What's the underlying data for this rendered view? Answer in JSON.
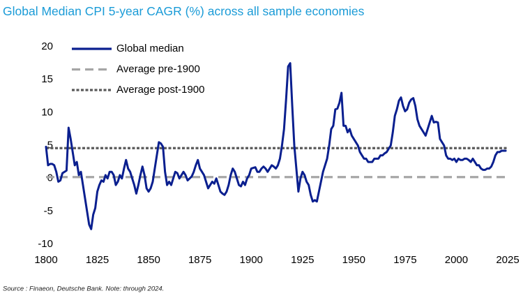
{
  "chart_data": {
    "type": "line",
    "title": "Global Median CPI 5-year CAGR (%) across all sample economies",
    "source": "Source : Finaeon, Deutsche Bank. Note: through 2024.",
    "xlim": [
      1800,
      2025
    ],
    "xticks": [
      1800,
      1825,
      1850,
      1875,
      1900,
      1925,
      1950,
      1975,
      2000,
      2025
    ],
    "ylim": [
      -10,
      20
    ],
    "yticks": [
      -10,
      -5,
      0,
      5,
      10,
      15,
      20
    ],
    "grid": false,
    "legend": "top-left",
    "series": [
      {
        "name": "Global median",
        "color": "#0a1f8f",
        "x": [
          1800,
          1801,
          1802,
          1803,
          1804,
          1805,
          1806,
          1807,
          1808,
          1809,
          1810,
          1811,
          1812,
          1813,
          1814,
          1815,
          1816,
          1817,
          1818,
          1819,
          1820,
          1821,
          1822,
          1823,
          1824,
          1825,
          1826,
          1827,
          1828,
          1829,
          1830,
          1831,
          1832,
          1833,
          1834,
          1835,
          1836,
          1837,
          1838,
          1839,
          1840,
          1841,
          1842,
          1843,
          1844,
          1845,
          1846,
          1847,
          1848,
          1849,
          1850,
          1851,
          1852,
          1853,
          1854,
          1855,
          1856,
          1857,
          1858,
          1859,
          1860,
          1861,
          1862,
          1863,
          1864,
          1865,
          1866,
          1867,
          1868,
          1869,
          1870,
          1871,
          1872,
          1873,
          1874,
          1875,
          1876,
          1877,
          1878,
          1879,
          1880,
          1881,
          1882,
          1883,
          1884,
          1885,
          1886,
          1887,
          1888,
          1889,
          1890,
          1891,
          1892,
          1893,
          1894,
          1895,
          1896,
          1897,
          1898,
          1899,
          1900,
          1901,
          1902,
          1903,
          1904,
          1905,
          1906,
          1907,
          1908,
          1909,
          1910,
          1911,
          1912,
          1913,
          1914,
          1915,
          1916,
          1917,
          1918,
          1919,
          1920,
          1921,
          1922,
          1923,
          1924,
          1925,
          1926,
          1927,
          1928,
          1929,
          1930,
          1931,
          1932,
          1933,
          1934,
          1935,
          1936,
          1937,
          1938,
          1939,
          1940,
          1941,
          1942,
          1943,
          1944,
          1945,
          1946,
          1947,
          1948,
          1949,
          1950,
          1951,
          1952,
          1953,
          1954,
          1955,
          1956,
          1957,
          1958,
          1959,
          1960,
          1961,
          1962,
          1963,
          1964,
          1965,
          1966,
          1967,
          1968,
          1969,
          1970,
          1971,
          1972,
          1973,
          1974,
          1975,
          1976,
          1977,
          1978,
          1979,
          1980,
          1981,
          1982,
          1983,
          1984,
          1985,
          1986,
          1987,
          1988,
          1989,
          1990,
          1991,
          1992,
          1993,
          1994,
          1995,
          1996,
          1997,
          1998,
          1999,
          2000,
          2001,
          2002,
          2003,
          2004,
          2005,
          2006,
          2007,
          2008,
          2009,
          2010,
          2011,
          2012,
          2013,
          2014,
          2015,
          2016,
          2017,
          2018,
          2019,
          2020,
          2021,
          2022,
          2023,
          2024
        ],
        "values": [
          4.8,
          2.0,
          2.2,
          2.2,
          2.0,
          1.0,
          -0.5,
          -0.3,
          0.8,
          1.0,
          1.2,
          7.7,
          6.0,
          4.0,
          2.0,
          2.5,
          0.5,
          1.0,
          -1.0,
          -3.0,
          -5.0,
          -7.0,
          -7.7,
          -5.5,
          -4.5,
          -2.0,
          -1.0,
          -0.3,
          -0.5,
          0.5,
          0.0,
          1.0,
          1.0,
          0.5,
          -1.0,
          -0.5,
          0.5,
          0.0,
          1.5,
          2.8,
          1.5,
          1.0,
          0.0,
          -1.0,
          -2.3,
          -1.0,
          0.5,
          1.8,
          0.5,
          -1.5,
          -2.0,
          -1.5,
          -0.5,
          1.5,
          3.5,
          5.5,
          5.3,
          4.8,
          1.0,
          -1.0,
          -0.5,
          -1.0,
          0.0,
          1.0,
          0.8,
          0.0,
          0.5,
          1.0,
          0.5,
          -0.3,
          0.0,
          0.3,
          1.0,
          2.0,
          2.8,
          1.5,
          1.0,
          0.5,
          -0.5,
          -1.5,
          -1.0,
          -0.5,
          -0.8,
          0.0,
          -1.0,
          -2.0,
          -2.3,
          -2.5,
          -2.0,
          -1.0,
          0.5,
          1.5,
          1.0,
          0.0,
          -1.0,
          -1.2,
          -0.5,
          -1.0,
          0.0,
          0.5,
          1.5,
          1.6,
          1.7,
          1.0,
          1.0,
          1.5,
          1.8,
          1.5,
          1.0,
          1.5,
          2.0,
          1.8,
          1.5,
          2.0,
          3.0,
          5.0,
          7.5,
          12.0,
          17.0,
          17.5,
          11.0,
          5.0,
          1.5,
          -2.0,
          0.0,
          1.0,
          0.5,
          -0.5,
          -1.0,
          -2.5,
          -3.5,
          -3.3,
          -3.5,
          -2.0,
          -0.5,
          1.0,
          2.0,
          3.0,
          5.0,
          7.5,
          8.0,
          10.5,
          10.6,
          11.5,
          13.0,
          8.0,
          8.0,
          7.0,
          7.5,
          6.5,
          6.0,
          5.5,
          5.0,
          4.0,
          3.5,
          3.0,
          3.0,
          2.5,
          2.5,
          2.5,
          3.0,
          3.0,
          3.0,
          3.5,
          3.5,
          3.8,
          4.0,
          4.5,
          5.0,
          7.0,
          9.5,
          10.5,
          11.8,
          12.3,
          11.0,
          10.2,
          10.5,
          11.5,
          12.0,
          12.2,
          11.0,
          9.0,
          8.0,
          7.5,
          7.0,
          6.5,
          7.5,
          8.5,
          9.5,
          8.5,
          8.6,
          8.5,
          6.0,
          5.5,
          5.0,
          3.5,
          3.0,
          3.0,
          2.8,
          3.0,
          2.5,
          3.0,
          2.8,
          2.8,
          3.0,
          3.0,
          2.8,
          2.5,
          3.0,
          2.5,
          2.0,
          2.0,
          1.5,
          1.3,
          1.3,
          1.5,
          1.5,
          1.8,
          2.5,
          3.5,
          4.0,
          4.0,
          4.2,
          4.2,
          4.2
        ]
      }
    ],
    "hlines": [
      {
        "name": "Average pre-1900",
        "value": 0.2,
        "color": "#a6a6a6",
        "style": "dashed"
      },
      {
        "name": "Average post-1900",
        "value": 4.6,
        "color": "#595959",
        "style": "dotted"
      }
    ]
  }
}
